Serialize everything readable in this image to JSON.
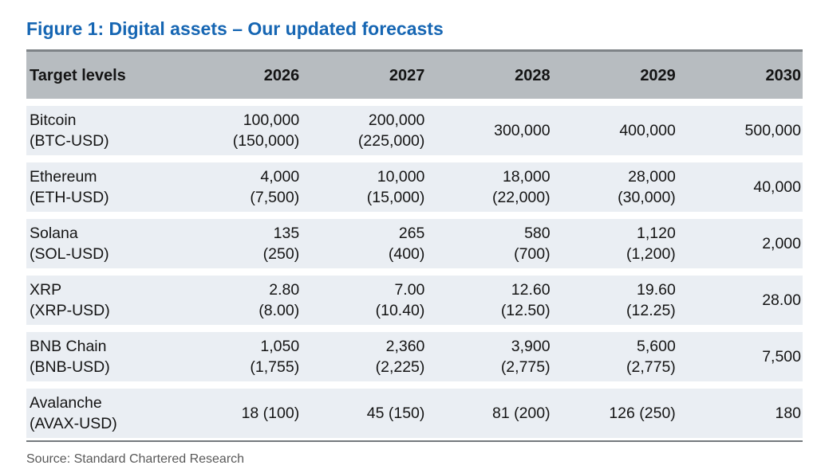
{
  "figure": {
    "title": "Figure 1: Digital assets – Our updated forecasts",
    "source": "Source: Standard Chartered Research"
  },
  "colors": {
    "title_blue": "#1666b3",
    "header_bg": "#b7bcc0",
    "header_top_border": "#7e8387",
    "row_bg": "#eaeef3",
    "bottom_border": "#74797d",
    "source_text": "#595959",
    "cell_text": "#141414"
  },
  "table": {
    "columns": [
      "Target levels",
      "2026",
      "2027",
      "2028",
      "2029",
      "2030"
    ],
    "rows": [
      {
        "asset": "Bitcoin",
        "ticker": "(BTC-USD)",
        "values": [
          {
            "main": "100,000",
            "sub": "(150,000)"
          },
          {
            "main": "200,000",
            "sub": "(225,000)"
          },
          {
            "main": "300,000",
            "sub": ""
          },
          {
            "main": "400,000",
            "sub": ""
          },
          {
            "main": "500,000",
            "sub": ""
          }
        ]
      },
      {
        "asset": "Ethereum",
        "ticker": "(ETH-USD)",
        "values": [
          {
            "main": "4,000",
            "sub": "(7,500)"
          },
          {
            "main": "10,000",
            "sub": "(15,000)"
          },
          {
            "main": "18,000",
            "sub": "(22,000)"
          },
          {
            "main": "28,000",
            "sub": "(30,000)"
          },
          {
            "main": "40,000",
            "sub": ""
          }
        ]
      },
      {
        "asset": "Solana",
        "ticker": "(SOL-USD)",
        "values": [
          {
            "main": "135",
            "sub": "(250)"
          },
          {
            "main": "265",
            "sub": "(400)"
          },
          {
            "main": "580",
            "sub": "(700)"
          },
          {
            "main": "1,120",
            "sub": "(1,200)"
          },
          {
            "main": "2,000",
            "sub": ""
          }
        ]
      },
      {
        "asset": "XRP",
        "ticker": "(XRP-USD)",
        "values": [
          {
            "main": "2.80",
            "sub": "(8.00)"
          },
          {
            "main": "7.00",
            "sub": "(10.40)"
          },
          {
            "main": "12.60",
            "sub": "(12.50)"
          },
          {
            "main": "19.60",
            "sub": "(12.25)"
          },
          {
            "main": "28.00",
            "sub": ""
          }
        ]
      },
      {
        "asset": "BNB Chain",
        "ticker": "(BNB-USD)",
        "values": [
          {
            "main": "1,050",
            "sub": "(1,755)"
          },
          {
            "main": "2,360",
            "sub": "(2,225)"
          },
          {
            "main": "3,900",
            "sub": "(2,775)"
          },
          {
            "main": "5,600",
            "sub": "(2,775)"
          },
          {
            "main": "7,500",
            "sub": ""
          }
        ]
      },
      {
        "asset": "Avalanche",
        "ticker": "(AVAX-USD)",
        "values": [
          {
            "main": "18 (100)",
            "sub": ""
          },
          {
            "main": "45 (150)",
            "sub": ""
          },
          {
            "main": "81 (200)",
            "sub": ""
          },
          {
            "main": "126 (250)",
            "sub": ""
          },
          {
            "main": "180",
            "sub": ""
          }
        ]
      }
    ]
  },
  "chart_data": {
    "type": "table",
    "title": "Figure 1: Digital assets – Our updated forecasts",
    "columns": [
      "Target levels",
      "2026",
      "2027",
      "2028",
      "2029",
      "2030"
    ],
    "rows": [
      [
        "Bitcoin (BTC-USD)",
        "100,000 (150,000)",
        "200,000 (225,000)",
        "300,000",
        "400,000",
        "500,000"
      ],
      [
        "Ethereum (ETH-USD)",
        "4,000 (7,500)",
        "10,000 (15,000)",
        "18,000 (22,000)",
        "28,000 (30,000)",
        "40,000"
      ],
      [
        "Solana (SOL-USD)",
        "135 (250)",
        "265 (400)",
        "580 (700)",
        "1,120 (1,200)",
        "2,000"
      ],
      [
        "XRP (XRP-USD)",
        "2.80 (8.00)",
        "7.00 (10.40)",
        "12.60 (12.50)",
        "19.60 (12.25)",
        "28.00"
      ],
      [
        "BNB Chain (BNB-USD)",
        "1,050 (1,755)",
        "2,360 (2,225)",
        "3,900 (2,775)",
        "5,600 (2,775)",
        "7,500"
      ],
      [
        "Avalanche (AVAX-USD)",
        "18 (100)",
        "45 (150)",
        "81 (200)",
        "126 (250)",
        "180"
      ]
    ],
    "source": "Source: Standard Chartered Research"
  }
}
